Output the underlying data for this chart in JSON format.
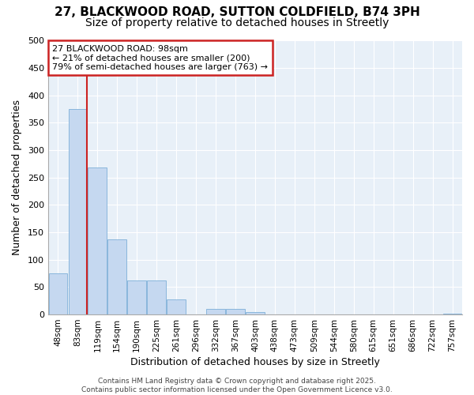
{
  "title_line1": "27, BLACKWOOD ROAD, SUTTON COLDFIELD, B74 3PH",
  "title_line2": "Size of property relative to detached houses in Streetly",
  "xlabel": "Distribution of detached houses by size in Streetly",
  "ylabel": "Number of detached properties",
  "categories": [
    "48sqm",
    "83sqm",
    "119sqm",
    "154sqm",
    "190sqm",
    "225sqm",
    "261sqm",
    "296sqm",
    "332sqm",
    "367sqm",
    "403sqm",
    "438sqm",
    "473sqm",
    "509sqm",
    "544sqm",
    "580sqm",
    "615sqm",
    "651sqm",
    "686sqm",
    "722sqm",
    "757sqm"
  ],
  "values": [
    75,
    375,
    268,
    137,
    62,
    62,
    28,
    0,
    10,
    10,
    5,
    0,
    0,
    0,
    0,
    0,
    0,
    0,
    0,
    0,
    2
  ],
  "bar_color": "#c5d8f0",
  "bar_edge_color": "#7dafd8",
  "bg_color": "#ffffff",
  "plot_bg_color": "#e8f0f8",
  "grid_color": "#ffffff",
  "vline_color": "#cc2222",
  "vline_x": 1.48,
  "annotation_text": "27 BLACKWOOD ROAD: 98sqm\n← 21% of detached houses are smaller (200)\n79% of semi-detached houses are larger (763) →",
  "annotation_box_color": "#ffffff",
  "annotation_box_edge": "#cc2222",
  "footer": "Contains HM Land Registry data © Crown copyright and database right 2025.\nContains public sector information licensed under the Open Government Licence v3.0.",
  "ylim": [
    0,
    500
  ],
  "yticks": [
    0,
    50,
    100,
    150,
    200,
    250,
    300,
    350,
    400,
    450,
    500
  ],
  "title_fontsize": 11,
  "subtitle_fontsize": 10
}
